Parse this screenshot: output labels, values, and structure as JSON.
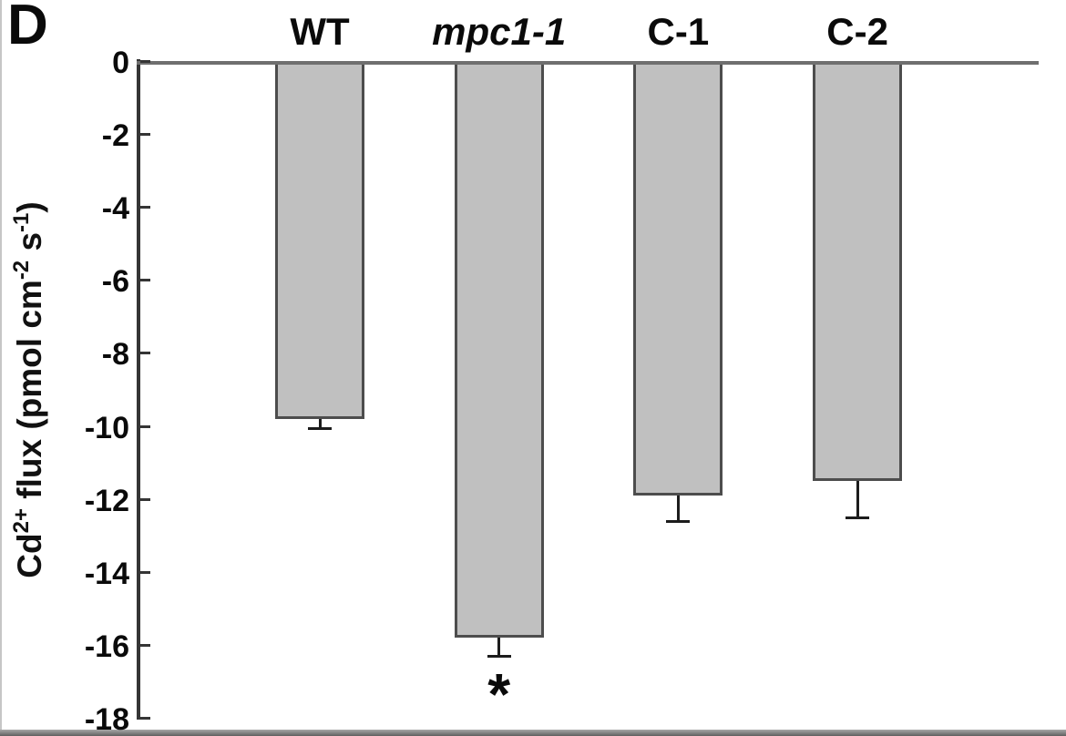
{
  "panel_label": "D",
  "chart_data": {
    "type": "bar",
    "title": "",
    "xlabel": "",
    "ylabel_plain": "Cd2+ flux (pmol cm-2 s-1)",
    "ylabel_segments": [
      {
        "text": "Cd",
        "sup": false
      },
      {
        "text": "2+",
        "sup": true
      },
      {
        "text": " flux (pmol cm",
        "sup": false
      },
      {
        "text": "-2",
        "sup": true
      },
      {
        "text": " s",
        "sup": false
      },
      {
        "text": "-1",
        "sup": true
      },
      {
        "text": ")",
        "sup": false
      }
    ],
    "categories": [
      "WT",
      "mpc1-1",
      "C-1",
      "C-2"
    ],
    "category_italic": [
      false,
      true,
      false,
      false
    ],
    "values": [
      -9.8,
      -15.8,
      -11.9,
      -11.5
    ],
    "errors": [
      0.25,
      0.5,
      0.7,
      1.0
    ],
    "significance": [
      "",
      "*",
      "",
      ""
    ],
    "ylim": [
      -18,
      0
    ],
    "yticks": [
      0,
      -2,
      -4,
      -6,
      -8,
      -10,
      -12,
      -14,
      -16,
      -18
    ],
    "ytick_labels": [
      "0",
      "-2",
      "-4",
      "-6",
      "-8",
      "-10",
      "-12",
      "-14",
      "-16",
      "-18"
    ],
    "grid": false,
    "legend": "none",
    "bar_fill_color": "#c0c0c0",
    "bar_border_color": "#4d4d4d",
    "axis_color": "#353535",
    "baseline_color": "#6f6f6f",
    "error_bar_color": "#1c1c1c",
    "text_color": "#0a0a0a"
  }
}
